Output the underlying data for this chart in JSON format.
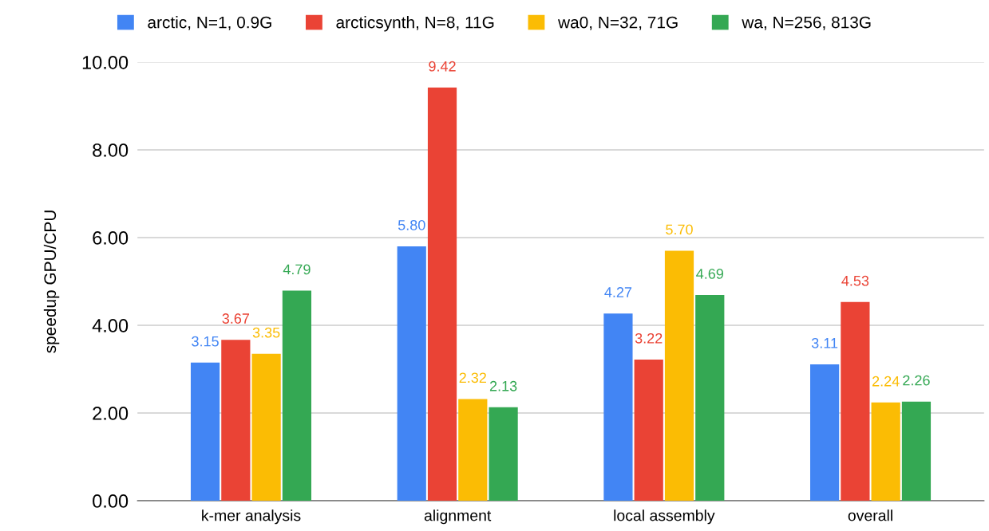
{
  "chart_data": {
    "type": "bar",
    "ylabel": "speedup GPU/CPU",
    "categories": [
      "k-mer analysis",
      "alignment",
      "local assembly",
      "overall"
    ],
    "series": [
      {
        "name": "arctic, N=1, 0.9G",
        "color": "#4285f4",
        "values": [
          3.15,
          5.8,
          4.27,
          3.11
        ],
        "value_labels": [
          "3.15",
          "5.80",
          "4.27",
          "3.11"
        ]
      },
      {
        "name": "arcticsynth, N=8, 11G",
        "color": "#ea4335",
        "values": [
          3.67,
          9.42,
          3.22,
          4.53
        ],
        "value_labels": [
          "3.67",
          "9.42",
          "3.22",
          "4.53"
        ]
      },
      {
        "name": "wa0, N=32, 71G",
        "color": "#fbbc04",
        "values": [
          3.35,
          2.32,
          5.7,
          2.24
        ],
        "value_labels": [
          "3.35",
          "2.32",
          "5.70",
          "2.24"
        ]
      },
      {
        "name": "wa, N=256, 813G",
        "color": "#34a853",
        "values": [
          4.79,
          2.13,
          4.69,
          2.26
        ],
        "value_labels": [
          "4.79",
          "2.13",
          "4.69",
          "2.26"
        ]
      }
    ],
    "ylim": [
      0,
      10
    ],
    "yticks": [
      {
        "value": 0,
        "label": "0.00"
      },
      {
        "value": 2,
        "label": "2.00"
      },
      {
        "value": 4,
        "label": "4.00"
      },
      {
        "value": 6,
        "label": "6.00"
      },
      {
        "value": 8,
        "label": "8.00"
      },
      {
        "value": 10,
        "label": "10.00"
      }
    ],
    "grid": "y",
    "legend": "top"
  }
}
